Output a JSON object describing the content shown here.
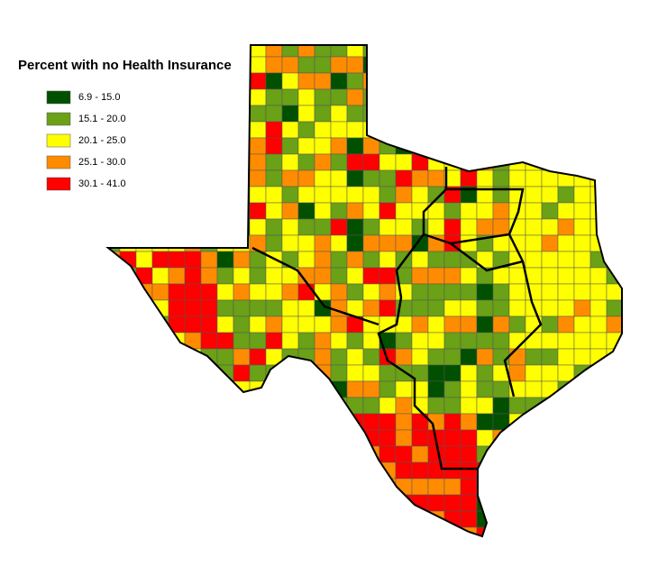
{
  "title": "Percent with no Health Insurance",
  "legend": {
    "items": [
      {
        "label": "6.9 - 15.0",
        "color": "#005000"
      },
      {
        "label": "15.1 - 20.0",
        "color": "#6aa116"
      },
      {
        "label": "20.1 - 25.0",
        "color": "#ffff00"
      },
      {
        "label": "25.1 - 30.0",
        "color": "#ff8c00"
      },
      {
        "label": "30.1 - 41.0",
        "color": "#ff0000"
      }
    ]
  }
}
